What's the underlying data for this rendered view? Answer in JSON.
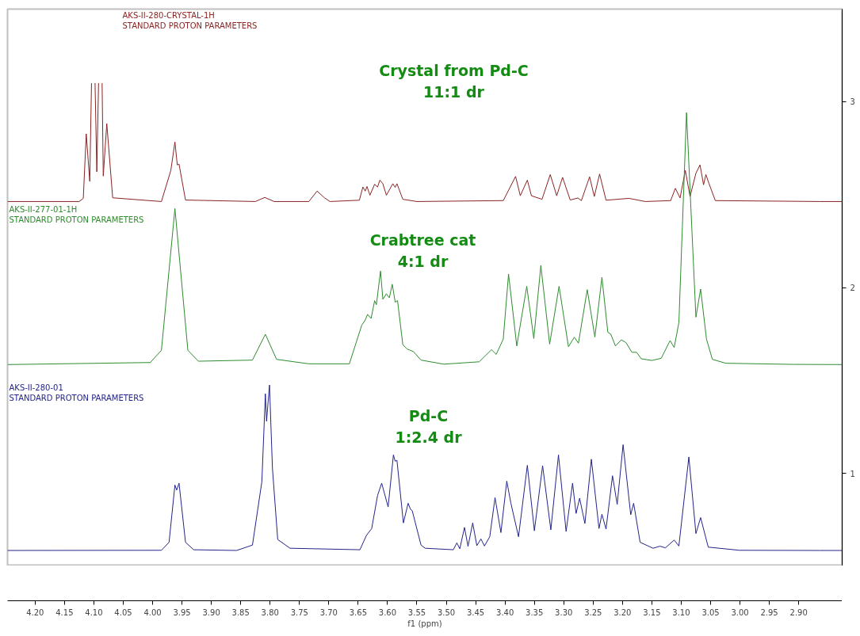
{
  "chart_data": {
    "type": "line",
    "xlabel": "f1 (ppm)",
    "xlim": [
      4.247,
      2.826
    ],
    "ylim": [
      0.503,
      3.498
    ],
    "yticks": [
      1,
      2,
      3
    ],
    "xticks": [
      {
        "value": 4.2,
        "label": "4.20"
      },
      4.15,
      {
        "value": 4.1,
        "label": "4.10"
      },
      4.05,
      {
        "value": 4.0,
        "label": "4.00"
      },
      3.95,
      {
        "value": 3.9,
        "label": "3.90"
      },
      3.85,
      {
        "value": 3.8,
        "label": "3.80"
      },
      3.75,
      {
        "value": 3.7,
        "label": "3.70"
      },
      3.65,
      {
        "value": 3.6,
        "label": "3.60"
      },
      3.55,
      {
        "value": 3.5,
        "label": "3.50"
      },
      3.45,
      {
        "value": 3.4,
        "label": "3.40"
      },
      3.35,
      {
        "value": 3.3,
        "label": "3.30"
      },
      3.25,
      {
        "value": 3.2,
        "label": "3.20"
      },
      3.15,
      {
        "value": 3.1,
        "label": "3.10"
      },
      3.05,
      {
        "value": 3.0,
        "label": "3.00"
      },
      2.95,
      {
        "value": 2.9,
        "label": "2.90"
      }
    ],
    "annotations": [
      "Crystal from Pd-C\n11:1 dr",
      "Crabtree cat\n4:1 dr",
      "Pd-C\n1:2.4 dr"
    ],
    "series": [
      {
        "name": "AKS-II-280-CRYSTAL-1H\nSTANDARD PROTON PARAMETERS",
        "color": "#8b2323",
        "x": [
          4.247,
          4.125,
          4.118,
          4.113,
          4.107,
          4.104,
          4.101,
          4.098,
          4.095,
          4.092,
          4.089,
          4.086,
          4.084,
          4.078,
          4.068,
          3.985,
          3.969,
          3.962,
          3.958,
          3.955,
          3.944,
          3.825,
          3.809,
          3.793,
          3.734,
          3.72,
          3.707,
          3.698,
          3.648,
          3.642,
          3.638,
          3.635,
          3.63,
          3.622,
          3.617,
          3.613,
          3.608,
          3.602,
          3.591,
          3.587,
          3.584,
          3.574,
          3.55,
          3.403,
          3.382,
          3.374,
          3.362,
          3.355,
          3.337,
          3.323,
          3.312,
          3.302,
          3.289,
          3.276,
          3.27,
          3.256,
          3.248,
          3.239,
          3.228,
          3.189,
          3.161,
          3.118,
          3.11,
          3.102,
          3.093,
          3.085,
          3.075,
          3.068,
          3.062,
          3.058,
          3.053,
          3.042,
          2.864,
          2.826
        ],
        "values": [
          2.463,
          2.463,
          2.48,
          2.827,
          2.571,
          3.1,
          null,
          3.1,
          2.623,
          3.1,
          null,
          3.1,
          2.6,
          2.882,
          2.483,
          2.463,
          2.63,
          2.783,
          2.66,
          2.664,
          2.471,
          2.463,
          2.485,
          2.463,
          2.463,
          2.519,
          2.482,
          2.463,
          2.47,
          2.541,
          2.519,
          2.544,
          2.497,
          2.556,
          2.541,
          2.578,
          2.559,
          2.497,
          2.559,
          2.539,
          2.559,
          2.475,
          2.463,
          2.468,
          2.598,
          2.494,
          2.578,
          2.494,
          2.475,
          2.608,
          2.494,
          2.593,
          2.471,
          2.482,
          2.468,
          2.596,
          2.49,
          2.611,
          2.47,
          2.48,
          2.463,
          2.468,
          2.534,
          2.482,
          2.63,
          2.49,
          2.615,
          2.66,
          2.553,
          2.608,
          2.562,
          2.468,
          2.463,
          2.463
        ]
      },
      {
        "name": "AKS-II-277-01-1H\nSTANDARD PROTON PARAMETERS",
        "color": "#2e8b2e",
        "x": [
          4.247,
          4.004,
          3.985,
          3.962,
          3.94,
          3.922,
          3.83,
          3.808,
          3.789,
          3.734,
          3.665,
          3.644,
          3.638,
          3.634,
          3.628,
          3.622,
          3.619,
          3.612,
          3.608,
          3.602,
          3.597,
          3.592,
          3.587,
          3.583,
          3.574,
          3.567,
          3.556,
          3.543,
          3.504,
          3.444,
          3.423,
          3.415,
          3.403,
          3.394,
          3.38,
          3.363,
          3.351,
          3.339,
          3.324,
          3.308,
          3.292,
          3.282,
          3.275,
          3.26,
          3.247,
          3.235,
          3.225,
          3.22,
          3.212,
          3.202,
          3.194,
          3.184,
          3.176,
          3.168,
          3.15,
          3.134,
          3.119,
          3.112,
          3.104,
          3.091,
          3.075,
          3.067,
          3.057,
          3.047,
          3.024,
          2.91,
          2.826
        ],
        "values": [
          1.586,
          1.597,
          1.663,
          2.425,
          1.663,
          1.604,
          1.61,
          1.749,
          1.614,
          1.59,
          1.59,
          1.797,
          1.826,
          1.856,
          1.834,
          1.93,
          1.908,
          2.089,
          1.937,
          1.967,
          1.945,
          2.018,
          1.922,
          1.93,
          1.693,
          1.67,
          1.656,
          1.61,
          1.588,
          1.601,
          1.666,
          1.641,
          1.723,
          2.073,
          1.686,
          2.007,
          1.726,
          2.119,
          1.696,
          2.007,
          1.682,
          1.733,
          1.701,
          1.989,
          1.734,
          2.055,
          1.76,
          1.75,
          1.686,
          1.719,
          1.704,
          1.652,
          1.652,
          1.617,
          1.608,
          1.62,
          1.715,
          1.678,
          1.811,
          2.941,
          1.841,
          1.992,
          1.723,
          1.614,
          1.593,
          1.587,
          1.586
        ]
      },
      {
        "name": "AKS-II-280-01\nSTANDARD PROTON PARAMETERS",
        "color": "#23238b",
        "x": [
          4.247,
          3.985,
          3.972,
          3.962,
          3.959,
          3.955,
          3.944,
          3.93,
          3.857,
          3.83,
          3.814,
          3.808,
          3.806,
          3.801,
          3.796,
          3.787,
          3.766,
          3.647,
          3.636,
          3.627,
          3.617,
          3.61,
          3.599,
          3.59,
          3.587,
          3.584,
          3.573,
          3.565,
          3.561,
          3.558,
          3.543,
          3.536,
          3.488,
          3.482,
          3.477,
          3.469,
          3.463,
          3.455,
          3.448,
          3.441,
          3.435,
          3.426,
          3.417,
          3.407,
          3.397,
          3.39,
          3.377,
          3.362,
          3.35,
          3.336,
          3.322,
          3.309,
          3.296,
          3.285,
          3.279,
          3.273,
          3.264,
          3.253,
          3.24,
          3.235,
          3.228,
          3.217,
          3.209,
          3.199,
          3.186,
          3.181,
          3.17,
          3.148,
          3.136,
          3.127,
          3.112,
          3.104,
          3.087,
          3.075,
          3.067,
          3.054,
          3.001,
          2.864,
          2.826
        ],
        "values": [
          0.586,
          0.587,
          0.63,
          0.938,
          0.911,
          0.948,
          0.63,
          0.59,
          0.586,
          0.615,
          0.956,
          1.429,
          1.281,
          1.476,
          1.029,
          0.645,
          0.598,
          0.59,
          0.667,
          0.704,
          0.882,
          0.948,
          0.82,
          1.1,
          1.066,
          1.071,
          0.734,
          0.84,
          0.808,
          0.8,
          0.615,
          0.598,
          0.59,
          0.627,
          0.595,
          0.71,
          0.608,
          0.734,
          0.612,
          0.648,
          0.61,
          0.66,
          0.87,
          0.682,
          0.959,
          0.84,
          0.66,
          1.044,
          0.692,
          1.042,
          0.697,
          1.1,
          0.688,
          0.948,
          0.785,
          0.867,
          0.731,
          1.077,
          0.704,
          0.781,
          0.701,
          0.988,
          0.834,
          1.155,
          0.778,
          0.84,
          0.63,
          0.598,
          0.609,
          0.6,
          0.642,
          0.61,
          1.089,
          0.677,
          0.763,
          0.604,
          0.587,
          0.586,
          0.586
        ]
      }
    ]
  }
}
